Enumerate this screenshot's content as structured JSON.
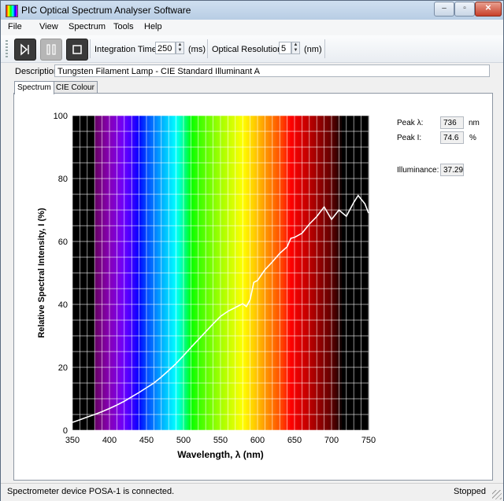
{
  "window": {
    "title": "PIC Optical Spectrum Analyser Software",
    "controls": {
      "minimize": "–",
      "restore": "▫",
      "close": "✕"
    }
  },
  "menu": [
    "File",
    "View",
    "Spectrum",
    "Tools",
    "Help"
  ],
  "toolbar": {
    "integration_label": "Integration Time:",
    "integration_value": "250",
    "integration_unit": "(ms)",
    "resolution_label": "Optical Resolution:",
    "resolution_value": "5",
    "resolution_unit": "(nm)",
    "icons": [
      "play-step-icon",
      "pause-icon",
      "stop-icon"
    ]
  },
  "description": {
    "label": "Description:",
    "value": "Tungsten Filament Lamp - CIE Standard Illuminant A"
  },
  "tabs": [
    {
      "label": "Spectrum",
      "active": true
    },
    {
      "label": "CIE Colour",
      "active": false
    }
  ],
  "readouts": {
    "peak_wavelength": {
      "label": "Peak λ:",
      "value": "736",
      "unit": "nm"
    },
    "peak_intensity": {
      "label": "Peak I:",
      "value": "74.6",
      "unit": "%"
    },
    "illuminance": {
      "label": "Illuminance:",
      "value": "37.29"
    }
  },
  "status": {
    "message": "Spectrometer device POSA-1 is connected.",
    "state": "Stopped"
  },
  "chart_data": {
    "type": "line",
    "xlabel": "Wavelength, λ (nm)",
    "ylabel": "Relative Spectral Intensity, I (%)",
    "xlim": [
      350,
      750
    ],
    "ylim": [
      0,
      100
    ],
    "xticks": [
      350,
      400,
      450,
      500,
      550,
      600,
      650,
      700,
      750
    ],
    "yticks": [
      0,
      20,
      40,
      60,
      80,
      100
    ],
    "grid": true,
    "background": "visible spectrum colour bands",
    "line_color": "#ffffff",
    "series": [
      {
        "x": [
          350,
          360,
          370,
          380,
          390,
          400,
          410,
          420,
          430,
          440,
          450,
          460,
          470,
          480,
          490,
          500,
          510,
          520,
          530,
          540,
          550,
          560,
          570,
          580,
          585,
          590,
          595,
          600,
          610,
          620,
          630,
          640,
          645,
          650,
          660,
          670,
          680,
          690,
          700,
          710,
          720,
          730,
          736,
          745,
          750
        ],
        "y": [
          2.5,
          3.3,
          4.2,
          5.0,
          5.9,
          6.9,
          8.0,
          9.2,
          10.6,
          12.0,
          13.5,
          15.0,
          16.9,
          19.0,
          21.2,
          23.7,
          26.3,
          28.8,
          31.3,
          33.8,
          36.2,
          37.8,
          39.0,
          40.2,
          39.3,
          41.5,
          47.0,
          47.6,
          51.0,
          53.5,
          56.2,
          58.3,
          61.0,
          61.3,
          62.6,
          65.5,
          67.9,
          71.0,
          67.0,
          70.0,
          68.0,
          72.4,
          74.6,
          72.0,
          69.0
        ]
      }
    ]
  }
}
